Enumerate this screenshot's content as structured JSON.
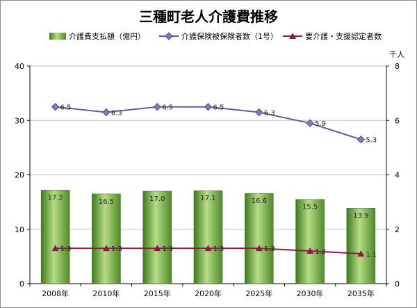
{
  "chart_data": {
    "type": "bar",
    "title": "三種町老人介護費推移",
    "categories": [
      "2008年",
      "2010年",
      "2015年",
      "2020年",
      "2025年",
      "2030年",
      "2035年"
    ],
    "series": [
      {
        "name": "介護費支払額（億円）",
        "type": "bar",
        "axis": "left",
        "color": "#6aa13a",
        "values": [
          17.2,
          16.5,
          17.0,
          17.1,
          16.6,
          15.5,
          13.9
        ],
        "labels": [
          "17.2",
          "16.5",
          "17.0",
          "17.1",
          "16.6",
          "15.5",
          "13.9"
        ]
      },
      {
        "name": "介護保険被保険者数（1号）",
        "type": "line",
        "axis": "right",
        "color": "#5c5c9e",
        "marker": "diamond",
        "values": [
          6.5,
          6.3,
          6.5,
          6.5,
          6.3,
          5.9,
          5.3
        ],
        "labels": [
          "6.5",
          "6.3",
          "6.5",
          "6.5",
          "6.3",
          "5.9",
          "5.3"
        ]
      },
      {
        "name": "要介護・支援認定者数",
        "type": "line",
        "axis": "right",
        "color": "#8b1a4a",
        "marker": "triangle",
        "values": [
          1.3,
          1.3,
          1.3,
          1.3,
          1.3,
          1.2,
          1.1
        ],
        "labels": [
          "1.3",
          "1.3",
          "1.3",
          "1.3",
          "1.3",
          "1.2",
          "1.1"
        ]
      }
    ],
    "y_left": {
      "min": 0,
      "max": 40,
      "ticks": [
        "0",
        "10",
        "20",
        "30",
        "40"
      ]
    },
    "y_right": {
      "min": 0,
      "max": 8,
      "ticks": [
        "0",
        "2",
        "4",
        "6",
        "8"
      ],
      "unit": "千人"
    },
    "grid": true,
    "legend_position": "top"
  }
}
